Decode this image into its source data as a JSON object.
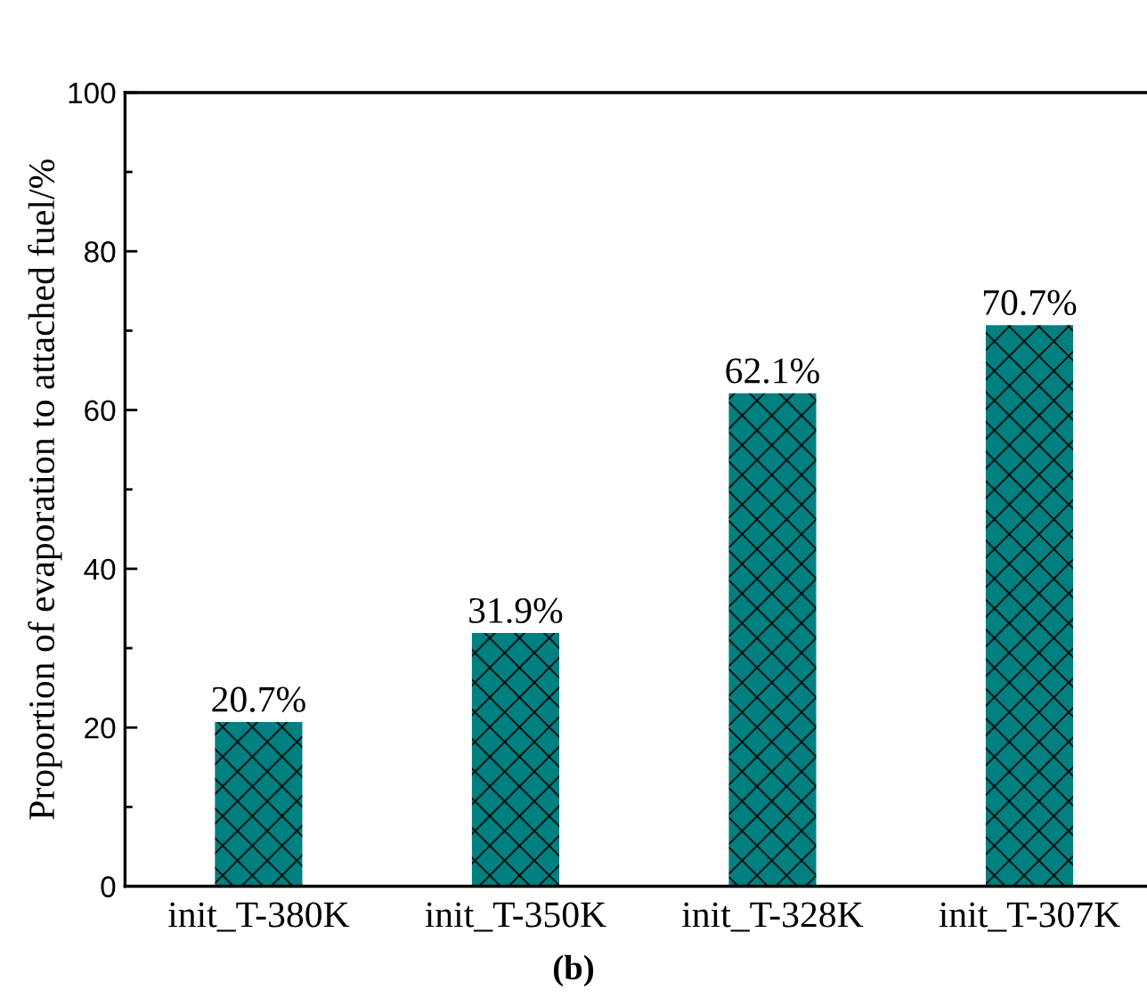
{
  "chart_data": {
    "type": "bar",
    "ylabel": "Proportion of evaporation to attached fuel/%",
    "categories": [
      "init_T-380K",
      "init_T-350K",
      "init_T-328K",
      "init_T-307K"
    ],
    "values": [
      20.7,
      31.9,
      62.1,
      70.7
    ],
    "value_labels": [
      "20.7%",
      "31.9%",
      "62.1%",
      "70.7%"
    ],
    "color": "#008080",
    "ylim": [
      0,
      100
    ],
    "yticks": [
      0,
      20,
      40,
      60,
      80,
      100
    ],
    "grid": false,
    "legend": false,
    "annotations": [
      "(b)"
    ]
  }
}
